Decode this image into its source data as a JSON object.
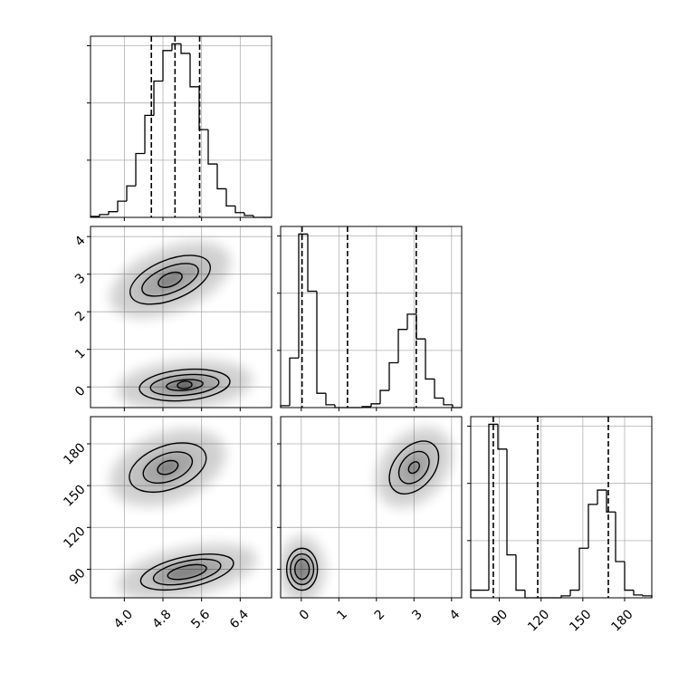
{
  "chart_data": {
    "type": "corner",
    "grid": true,
    "hist_color": "#000000",
    "density_color": "#000000",
    "hist_ylim": [
      0,
      190
    ],
    "hist_yticks": [
      60,
      120,
      180
    ],
    "params": [
      {
        "xlim": [
          3.3,
          7.05
        ],
        "ticks": [
          {
            "value": 4,
            "label": "4.0"
          },
          4.8,
          5.6,
          6.4
        ],
        "bins": [
          3.3,
          3.4875,
          3.675,
          3.8625,
          4.05,
          4.2375,
          4.425,
          4.6125,
          4.8,
          4.9875,
          5.175,
          5.3625,
          5.55,
          5.7375,
          5.925,
          6.1125,
          6.3,
          6.4875,
          6.675,
          6.8625,
          7.05
        ],
        "counts": [
          1,
          3,
          6,
          17,
          33,
          67,
          107,
          143,
          175,
          182,
          172,
          137,
          92,
          56,
          30,
          12,
          5,
          2,
          0,
          0
        ],
        "quantiles": [
          4.56,
          5.05,
          5.56
        ]
      },
      {
        "xlim": [
          -0.55,
          4.27
        ],
        "ticks": [
          0,
          1,
          2,
          3,
          4
        ],
        "bins": [
          -0.55,
          -0.309,
          -0.068,
          0.173,
          0.414,
          0.655,
          0.896,
          1.137,
          1.378,
          1.619,
          1.86,
          2.101,
          2.342,
          2.583,
          2.824,
          3.065,
          3.306,
          3.547,
          3.788,
          4.029,
          4.27
        ],
        "counts": [
          2,
          52,
          182,
          122,
          15,
          3,
          0,
          0,
          0,
          1,
          4,
          18,
          47,
          82,
          98,
          72,
          30,
          10,
          3,
          0
        ],
        "quantiles": [
          0.02,
          1.23,
          3.06
        ]
      },
      {
        "xlim": [
          69.5,
          199.5
        ],
        "ticks": [
          90,
          120,
          150,
          180
        ],
        "bins": [
          69.5,
          76,
          82.5,
          89,
          95.5,
          102,
          108.5,
          115,
          121.5,
          128,
          134.5,
          141,
          147.5,
          154,
          160.5,
          167,
          173.5,
          180,
          186.5,
          193,
          199.5
        ],
        "counts": [
          8,
          8,
          182,
          156,
          45,
          8,
          0,
          0,
          0,
          0,
          2,
          8,
          52,
          98,
          113,
          90,
          38,
          8,
          3,
          2
        ],
        "quantiles": [
          85.7,
          117.6,
          168.3
        ]
      }
    ],
    "pairs": [
      {
        "axes": [
          0,
          1
        ],
        "clusters": [
          {
            "center": [
              4.95,
              2.85
            ],
            "angle": -22,
            "contours": [
              [
                0.88,
                0.53
              ],
              [
                0.62,
                0.34
              ],
              [
                0.26,
                0.17
              ]
            ]
          },
          {
            "center": [
              5.25,
              0.05
            ],
            "angle": -5,
            "contours": [
              [
                0.94,
                0.41
              ],
              [
                0.71,
                0.27
              ],
              [
                0.38,
                0.14
              ],
              [
                0.15,
                0.1
              ]
            ]
          }
        ]
      },
      {
        "axes": [
          0,
          2
        ],
        "clusters": [
          {
            "center": [
              4.9,
              163
            ],
            "angle": -20,
            "contours": [
              [
                0.83,
                15.6
              ],
              [
                0.53,
                9.8
              ],
              [
                0.22,
                4.5
              ]
            ]
          },
          {
            "center": [
              5.3,
              88
            ],
            "angle": -12,
            "contours": [
              [
                0.98,
                11
              ],
              [
                0.71,
                7.8
              ],
              [
                0.41,
                4.5
              ]
            ]
          }
        ]
      },
      {
        "axes": [
          1,
          2
        ],
        "clusters": [
          {
            "center": [
              3.0,
              163
            ],
            "angle": -50,
            "contours": [
              [
                0.8,
                14.3
              ],
              [
                0.48,
                9.1
              ],
              [
                0.17,
                3.3
              ]
            ]
          },
          {
            "center": [
              0.02,
              90
            ],
            "angle": 0,
            "contours": [
              [
                0.41,
                15
              ],
              [
                0.31,
                11
              ],
              [
                0.19,
                7.2
              ]
            ]
          }
        ]
      }
    ]
  }
}
